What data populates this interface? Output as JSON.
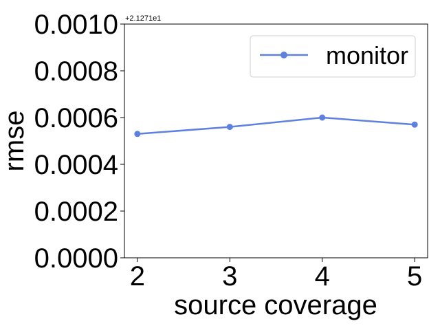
{
  "chart_data": {
    "type": "line",
    "title": "",
    "xlabel": "source coverage",
    "ylabel": "rmse",
    "offset_label": "+2.1271e1",
    "x": [
      2,
      3,
      4,
      5
    ],
    "x_ticks": [
      "2",
      "3",
      "4",
      "5"
    ],
    "y_ticks": [
      "0.0000",
      "0.0002",
      "0.0004",
      "0.0006",
      "0.0008",
      "0.0010"
    ],
    "xlim": [
      1.86,
      5.14
    ],
    "ylim": [
      0.0,
      0.001
    ],
    "grid": false,
    "legend": {
      "placement": "top-right"
    },
    "series": [
      {
        "name": "monitor",
        "color": "#5e81e0",
        "marker": "circle",
        "values": [
          0.00053,
          0.00056,
          0.0006,
          0.00057
        ]
      }
    ]
  }
}
